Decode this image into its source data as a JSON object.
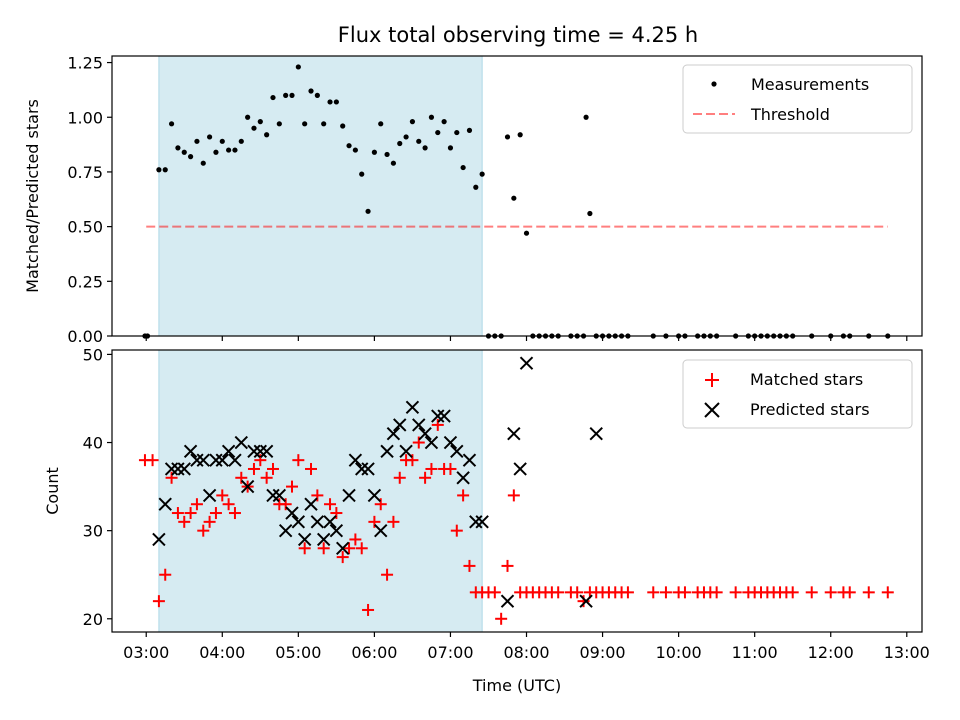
{
  "title": "Flux total observing time = 4.25 h",
  "colors": {
    "span": "#add8e6",
    "measurements": "#000000",
    "threshold": "#ff0000",
    "matched": "#ff0000",
    "predicted": "#000000"
  },
  "chart_data": [
    {
      "type": "scatter",
      "ylabel": "Matched/Predicted stars",
      "ylim": [
        0,
        1.28
      ],
      "yticks": [
        "0.00",
        "0.25",
        "0.50",
        "0.75",
        "1.00",
        "1.25"
      ],
      "shaded_span": [
        "03:10",
        "07:25"
      ],
      "legend_position": "top-right",
      "threshold": {
        "name": "Threshold",
        "value": 0.5,
        "x_range": [
          "03:00",
          "12:45"
        ]
      },
      "series": [
        {
          "name": "Measurements",
          "marker": "dot",
          "x": [
            "02:59",
            "03:01",
            "03:10",
            "03:15",
            "03:20",
            "03:25",
            "03:30",
            "03:35",
            "03:40",
            "03:45",
            "03:50",
            "03:55",
            "04:00",
            "04:05",
            "04:10",
            "04:15",
            "04:20",
            "04:25",
            "04:30",
            "04:35",
            "04:40",
            "04:45",
            "04:50",
            "04:55",
            "05:00",
            "05:05",
            "05:10",
            "05:15",
            "05:20",
            "05:25",
            "05:30",
            "05:35",
            "05:40",
            "05:45",
            "05:50",
            "05:55",
            "06:00",
            "06:05",
            "06:10",
            "06:15",
            "06:20",
            "06:25",
            "06:30",
            "06:35",
            "06:40",
            "06:45",
            "06:50",
            "06:55",
            "07:00",
            "07:05",
            "07:10",
            "07:15",
            "07:20",
            "07:25",
            "07:30",
            "07:35",
            "07:40",
            "07:45",
            "07:50",
            "07:55",
            "08:00",
            "08:05",
            "08:10",
            "08:15",
            "08:20",
            "08:25",
            "08:35",
            "08:40",
            "08:45",
            "08:47",
            "08:50",
            "08:55",
            "09:00",
            "09:05",
            "09:10",
            "09:15",
            "09:20",
            "09:40",
            "09:50",
            "10:00",
            "10:05",
            "10:15",
            "10:20",
            "10:25",
            "10:30",
            "10:45",
            "10:55",
            "11:00",
            "11:05",
            "11:10",
            "11:15",
            "11:20",
            "11:25",
            "11:30",
            "11:45",
            "12:00",
            "12:10",
            "12:15",
            "12:30",
            "12:45"
          ],
          "y": [
            0,
            0,
            0.76,
            0.76,
            0.97,
            0.86,
            0.84,
            0.82,
            0.89,
            0.79,
            0.91,
            0.84,
            0.89,
            0.85,
            0.85,
            0.89,
            1.0,
            0.95,
            0.98,
            0.92,
            1.09,
            0.97,
            1.1,
            1.1,
            1.23,
            0.97,
            1.12,
            1.1,
            0.97,
            1.07,
            1.07,
            0.96,
            0.87,
            0.85,
            0.74,
            0.57,
            0.84,
            0.97,
            0.83,
            0.79,
            0.88,
            0.91,
            0.98,
            0.89,
            0.86,
            1.0,
            0.93,
            0.98,
            0.86,
            0.93,
            0.77,
            0.94,
            0.68,
            0.74,
            0,
            0,
            0,
            0.91,
            0.63,
            0.92,
            0.47,
            0,
            0,
            0,
            0,
            0,
            0,
            0,
            0,
            1.0,
            0.56,
            0,
            0,
            0,
            0,
            0,
            0,
            0,
            0,
            0,
            0,
            0,
            0,
            0,
            0,
            0,
            0,
            0,
            0,
            0,
            0,
            0,
            0,
            0,
            0,
            0,
            0,
            0,
            0,
            0
          ]
        }
      ]
    },
    {
      "type": "scatter",
      "xlabel": "Time (UTC)",
      "ylabel": "Count",
      "ylim": [
        18.5,
        50.5
      ],
      "yticks": [
        "20",
        "30",
        "40",
        "50"
      ],
      "xlim": [
        "02:33",
        "13:12"
      ],
      "xticks": [
        "03:00",
        "04:00",
        "05:00",
        "06:00",
        "07:00",
        "08:00",
        "09:00",
        "10:00",
        "11:00",
        "12:00",
        "13:00"
      ],
      "shaded_span": [
        "03:10",
        "07:25"
      ],
      "legend_position": "top-right",
      "series": [
        {
          "name": "Matched stars",
          "marker": "plus",
          "x": [
            "02:59",
            "03:05",
            "03:10",
            "03:15",
            "03:20",
            "03:25",
            "03:30",
            "03:35",
            "03:40",
            "03:45",
            "03:50",
            "03:55",
            "04:00",
            "04:05",
            "04:10",
            "04:15",
            "04:20",
            "04:25",
            "04:30",
            "04:35",
            "04:40",
            "04:45",
            "04:50",
            "04:55",
            "05:00",
            "05:05",
            "05:10",
            "05:15",
            "05:20",
            "05:25",
            "05:30",
            "05:35",
            "05:40",
            "05:45",
            "05:50",
            "05:55",
            "06:00",
            "06:05",
            "06:10",
            "06:15",
            "06:20",
            "06:25",
            "06:30",
            "06:35",
            "06:40",
            "06:45",
            "06:50",
            "06:55",
            "07:00",
            "07:05",
            "07:10",
            "07:15",
            "07:20",
            "07:25",
            "07:30",
            "07:35",
            "07:40",
            "07:45",
            "07:50",
            "07:55",
            "08:00",
            "08:05",
            "08:10",
            "08:15",
            "08:20",
            "08:25",
            "08:35",
            "08:40",
            "08:45",
            "08:50",
            "08:55",
            "09:00",
            "09:05",
            "09:10",
            "09:15",
            "09:20",
            "09:40",
            "09:50",
            "10:00",
            "10:05",
            "10:15",
            "10:20",
            "10:25",
            "10:30",
            "10:45",
            "10:55",
            "11:00",
            "11:05",
            "11:10",
            "11:15",
            "11:20",
            "11:25",
            "11:30",
            "11:45",
            "12:00",
            "12:10",
            "12:15",
            "12:30",
            "12:45"
          ],
          "y": [
            38,
            38,
            22,
            25,
            36,
            32,
            31,
            32,
            33,
            30,
            31,
            32,
            34,
            33,
            32,
            36,
            35,
            37,
            38,
            36,
            37,
            33,
            33,
            35,
            38,
            28,
            37,
            34,
            28,
            33,
            32,
            27,
            28,
            29,
            28,
            21,
            31,
            33,
            25,
            31,
            36,
            38,
            38,
            40,
            36,
            37,
            42,
            37,
            37,
            30,
            34,
            26,
            23,
            23,
            23,
            23,
            20,
            26,
            34,
            23,
            23,
            23,
            23,
            23,
            23,
            23,
            23,
            23,
            22,
            23,
            23,
            23,
            23,
            23,
            23,
            23,
            23,
            23,
            23,
            23,
            23,
            23,
            23,
            23,
            23,
            23,
            23,
            23,
            23,
            23,
            23,
            23,
            23,
            23,
            23,
            23,
            23,
            23,
            23
          ]
        },
        {
          "name": "Predicted stars",
          "marker": "x",
          "x": [
            "03:10",
            "03:15",
            "03:20",
            "03:25",
            "03:30",
            "03:35",
            "03:40",
            "03:45",
            "03:50",
            "03:55",
            "04:00",
            "04:05",
            "04:10",
            "04:15",
            "04:20",
            "04:25",
            "04:30",
            "04:35",
            "04:40",
            "04:45",
            "04:50",
            "04:55",
            "05:00",
            "05:05",
            "05:10",
            "05:15",
            "05:20",
            "05:25",
            "05:30",
            "05:35",
            "05:40",
            "05:45",
            "05:50",
            "05:55",
            "06:00",
            "06:05",
            "06:10",
            "06:15",
            "06:20",
            "06:25",
            "06:30",
            "06:35",
            "06:40",
            "06:45",
            "06:50",
            "06:55",
            "07:00",
            "07:05",
            "07:10",
            "07:15",
            "07:20",
            "07:25",
            "07:45",
            "07:50",
            "07:55",
            "08:00",
            "08:47",
            "08:55"
          ],
          "y": [
            29,
            33,
            37,
            37,
            37,
            39,
            38,
            38,
            34,
            38,
            38,
            39,
            38,
            40,
            35,
            39,
            39,
            39,
            34,
            34,
            30,
            32,
            31,
            29,
            33,
            31,
            29,
            31,
            30,
            28,
            34,
            38,
            37,
            37,
            34,
            30,
            39,
            41,
            42,
            39,
            44,
            42,
            41,
            40,
            43,
            43,
            40,
            39,
            36,
            38,
            31,
            31,
            22,
            41,
            37,
            49,
            22,
            41
          ]
        }
      ]
    }
  ]
}
